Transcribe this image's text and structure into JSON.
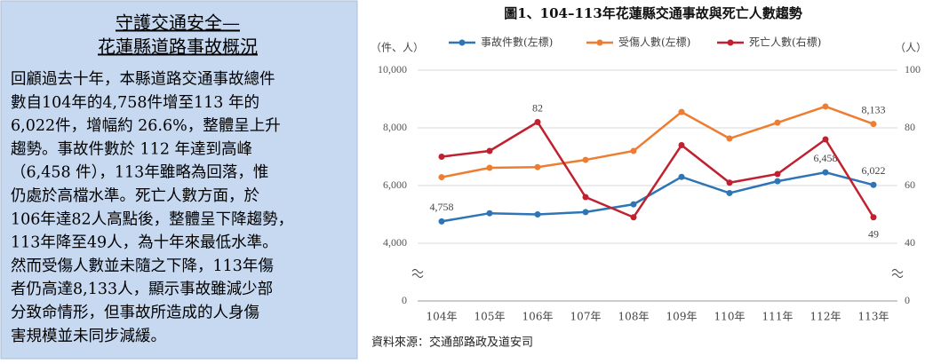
{
  "panel": {
    "title_lines": [
      "守護交通安全—",
      "花蓮縣道路事故概況"
    ],
    "lines": [
      "回顧過去十年，本縣道路交通事故總件",
      "數自104年的4,758件增至113 年的",
      "6,022件，增幅約 26.6%，整體呈上升",
      "趨勢。事故件數於 112 年達到高峰",
      "（6,458 件），113年雖略為回落，惟",
      "仍處於高檔水準。死亡人數方面，於",
      "106年達82人高點後，整體呈下降趨勢，",
      "113年降至49人，為十年來最低水準。",
      "然而受傷人數並未隨之下降，113年傷",
      "者仍高達8,133人，顯示事故雖減少部",
      "分致命情形，但事故所造成的人身傷",
      "害規模並未同步減緩。"
    ]
  },
  "chart_data": {
    "type": "line",
    "title": "圖1、104–113年花蓮縣交通事故與死亡人數趨勢",
    "y_label": "（件、人）",
    "y2_label": "（人）",
    "source": "資料來源：交通部路政及道安司",
    "categories": [
      "104年",
      "105年",
      "106年",
      "107年",
      "108年",
      "109年",
      "110年",
      "111年",
      "112年",
      "113年"
    ],
    "series": [
      {
        "name": "事故件數(左標)",
        "color": "#2e75b6",
        "values": [
          4758,
          5040,
          5000,
          5080,
          5350,
          6300,
          5740,
          6150,
          6458,
          6022
        ],
        "value_labels": [
          "4,758",
          null,
          null,
          null,
          null,
          null,
          null,
          null,
          "6,458",
          "6,022"
        ]
      },
      {
        "name": "受傷人數(左標)",
        "color": "#ed7d31",
        "values": [
          6290,
          6615,
          6640,
          6890,
          7200,
          8550,
          7630,
          8180,
          8740,
          8133
        ],
        "value_labels": [
          null,
          null,
          null,
          null,
          null,
          null,
          null,
          null,
          null,
          "8,133"
        ]
      },
      {
        "name": "死亡人數(右標)",
        "color": "#c0202f",
        "axis": "y2",
        "values": [
          70,
          72,
          82,
          56,
          49,
          74,
          61,
          64,
          76,
          49
        ],
        "value_labels": [
          null,
          null,
          "82",
          null,
          null,
          null,
          null,
          null,
          null,
          "49"
        ]
      }
    ],
    "ylim": [
      0,
      10000
    ],
    "yticks": [
      0,
      {
        "value": 4000,
        "label": "4,000"
      },
      {
        "value": 6000,
        "label": "6,000"
      },
      {
        "value": 8000,
        "label": "8,000"
      },
      {
        "value": 10000,
        "label": "10,000"
      }
    ],
    "y2lim": [
      0,
      100
    ],
    "y2ticks": [
      0,
      40,
      60,
      80,
      100
    ],
    "axis_break": true,
    "grid": true
  }
}
